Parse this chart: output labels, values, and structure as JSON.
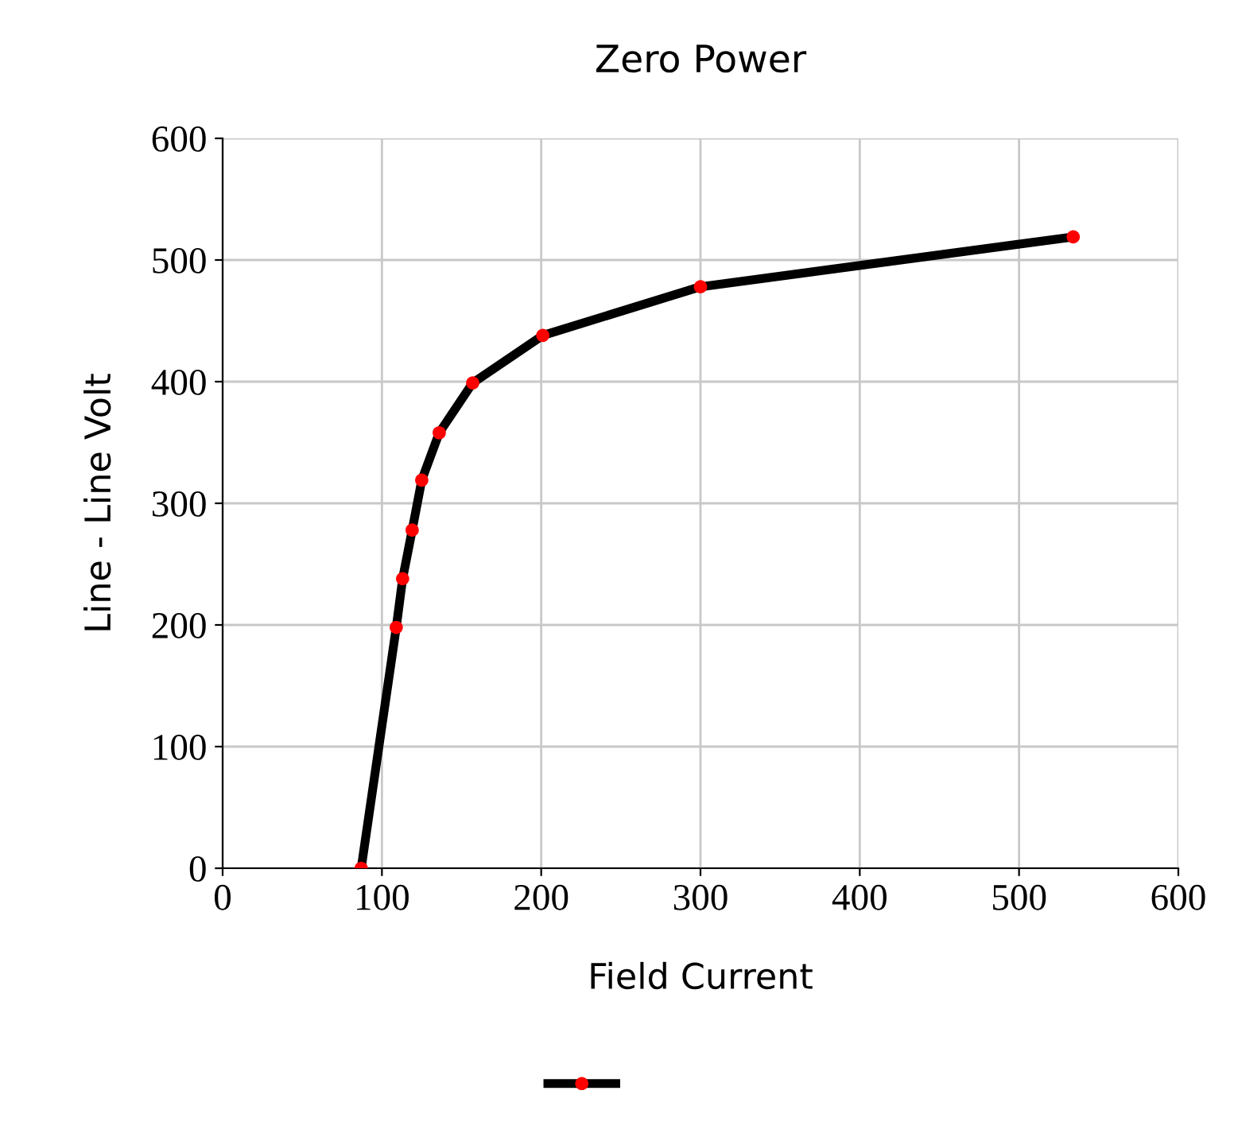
{
  "chart_data": {
    "type": "line",
    "title": "Zero Power",
    "xlabel": "Field Current",
    "ylabel": "Line - Line Volt",
    "series": [
      {
        "color": "#000000",
        "colors": [
          "#ff0000",
          "#ff0000",
          "#ff0000",
          "#ff0000",
          "#ff0000",
          "#ff0000",
          "#ff0000",
          "#ff0000",
          "#ff0000",
          "#ff0000"
        ],
        "x": [
          87,
          109,
          113,
          119,
          125,
          136,
          157,
          201,
          300,
          534
        ],
        "values": [
          0,
          198,
          238,
          278,
          319,
          358,
          399,
          438,
          478,
          519
        ]
      }
    ],
    "xlim": [
      0,
      600
    ],
    "xticks": [
      0,
      100,
      200,
      300,
      400,
      500,
      600
    ],
    "ylim": [
      0,
      600
    ],
    "yticks": [
      0,
      100,
      200,
      300,
      400,
      500,
      600
    ],
    "grid": true,
    "marker": "circle",
    "line_style": "solid"
  }
}
